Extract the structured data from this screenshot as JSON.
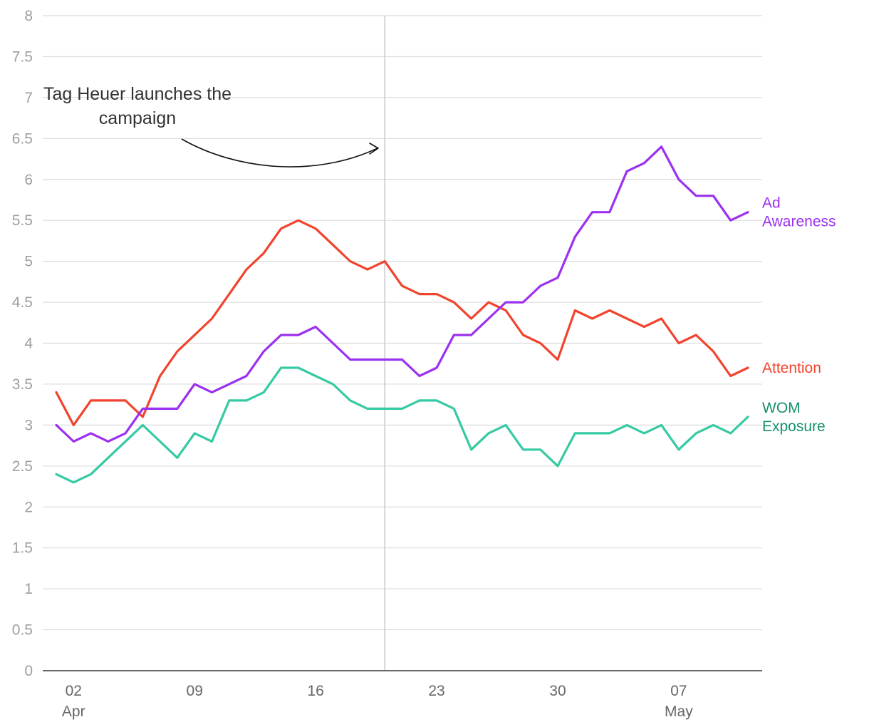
{
  "chart_data": {
    "type": "line",
    "title": "",
    "xlabel": "",
    "ylabel": "",
    "ylim": [
      0,
      8
    ],
    "yticks": [
      "0",
      "0.5",
      "1",
      "1.5",
      "2",
      "2.5",
      "3",
      "3.5",
      "4",
      "4.5",
      "5",
      "5.5",
      "6",
      "6.5",
      "7",
      "7.5",
      "8"
    ],
    "x_start_day": 1,
    "x_end_day": 41,
    "xticks": [
      {
        "day": 2,
        "label": "02",
        "month": "Apr"
      },
      {
        "day": 9,
        "label": "09",
        "month": ""
      },
      {
        "day": 16,
        "label": "16",
        "month": ""
      },
      {
        "day": 23,
        "label": "23",
        "month": ""
      },
      {
        "day": 30,
        "label": "30",
        "month": ""
      },
      {
        "day": 37,
        "label": "07",
        "month": "May"
      }
    ],
    "event": {
      "day": 20,
      "text_lines": [
        "Tag Heuer launches the",
        "campaign"
      ]
    },
    "series": [
      {
        "name": "Attention",
        "label_lines": [
          "Attention"
        ],
        "color": "#f2432e",
        "values": [
          3.4,
          3.0,
          3.3,
          3.3,
          3.3,
          3.1,
          3.6,
          3.9,
          4.1,
          4.3,
          4.6,
          4.9,
          5.1,
          5.4,
          5.5,
          5.4,
          5.2,
          5.0,
          4.9,
          5.0,
          4.7,
          4.6,
          4.6,
          4.5,
          4.3,
          4.5,
          4.4,
          4.1,
          4.0,
          3.8,
          4.4,
          4.3,
          4.4,
          4.3,
          4.2,
          4.3,
          4.0,
          4.1,
          3.9,
          3.6,
          3.7
        ]
      },
      {
        "name": "Ad Awareness",
        "label_lines": [
          "Ad",
          "Awareness"
        ],
        "color": "#9b30f0",
        "values": [
          3.0,
          2.8,
          2.9,
          2.8,
          2.9,
          3.2,
          3.2,
          3.2,
          3.5,
          3.4,
          3.5,
          3.6,
          3.9,
          4.1,
          4.1,
          4.2,
          4.0,
          3.8,
          3.8,
          3.8,
          3.8,
          3.6,
          3.7,
          4.1,
          4.1,
          4.3,
          4.5,
          4.5,
          4.7,
          4.8,
          5.3,
          5.6,
          5.6,
          6.1,
          6.2,
          6.4,
          6.0,
          5.8,
          5.8,
          5.5,
          5.6
        ]
      },
      {
        "name": "WOM Exposure",
        "label_lines": [
          "WOM",
          "Exposure"
        ],
        "color": "#35c9a4",
        "label_color": "#14906c",
        "values": [
          2.4,
          2.3,
          2.4,
          2.6,
          2.8,
          3.0,
          2.8,
          2.6,
          2.9,
          2.8,
          3.3,
          3.3,
          3.4,
          3.7,
          3.7,
          3.6,
          3.5,
          3.3,
          3.2,
          3.2,
          3.2,
          3.3,
          3.3,
          3.2,
          2.7,
          2.9,
          3.0,
          2.7,
          2.7,
          2.5,
          2.9,
          2.9,
          2.9,
          3.0,
          2.9,
          3.0,
          2.7,
          2.9,
          3.0,
          2.9,
          3.1
        ]
      }
    ]
  }
}
